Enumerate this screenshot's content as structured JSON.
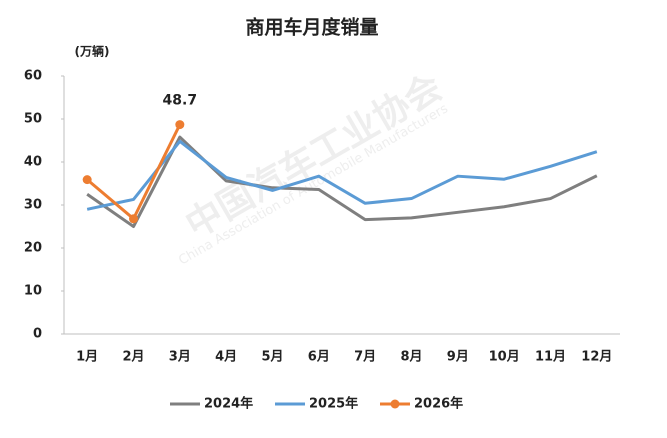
{
  "chart_data": {
    "type": "line",
    "title": "商用车月度销量",
    "y_label": "(万辆)",
    "categories": [
      "1月",
      "2月",
      "3月",
      "4月",
      "5月",
      "6月",
      "7月",
      "8月",
      "9月",
      "10月",
      "11月",
      "12月"
    ],
    "series": [
      {
        "name": "2024年",
        "color": "#7f7f7f",
        "marker": false,
        "values": [
          32.5,
          25,
          45.8,
          35.6,
          34,
          33.6,
          26.6,
          27,
          28.3,
          29.6,
          31.5,
          36.8
        ]
      },
      {
        "name": "2025年",
        "color": "#5b9bd5",
        "marker": false,
        "values": [
          29,
          31.3,
          44.8,
          36.4,
          33.4,
          36.7,
          30.4,
          31.5,
          36.7,
          36,
          39,
          42.4
        ]
      },
      {
        "name": "2026年",
        "color": "#ed7d31",
        "marker": true,
        "values": [
          35.9,
          26.8,
          48.7,
          null,
          null,
          null,
          null,
          null,
          null,
          null,
          null,
          null
        ]
      }
    ],
    "data_label": {
      "series": 2,
      "index": 2
    },
    "ylim": [
      0,
      60
    ],
    "yticks": [
      0,
      10,
      20,
      30,
      40,
      50,
      60
    ],
    "grid": false,
    "legend": "bottom",
    "watermark": {
      "name": "中国汽车工业协会",
      "english": "China Association of Automobile Manufacturers"
    }
  }
}
